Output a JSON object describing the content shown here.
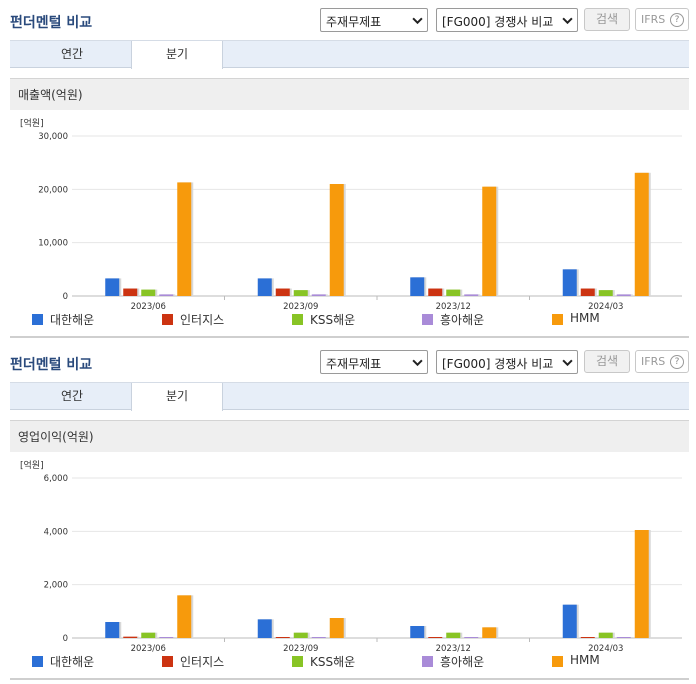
{
  "panels": [
    {
      "title": "펀더멘털 비교",
      "select_statement": "주재무제표",
      "select_compare": "[FG000] 경쟁사 비교",
      "search_label": "검색",
      "ifrs_label": "IFRS",
      "help_glyph": "?",
      "tabs": [
        {
          "label": "연간"
        },
        {
          "label": "분기"
        }
      ],
      "active_tab": 1,
      "card_title": "매출액(억원)"
    },
    {
      "title": "펀더멘털 비교",
      "select_statement": "주재무제표",
      "select_compare": "[FG000] 경쟁사 비교",
      "search_label": "검색",
      "ifrs_label": "IFRS",
      "help_glyph": "?",
      "tabs": [
        {
          "label": "연간"
        },
        {
          "label": "분기"
        }
      ],
      "active_tab": 1,
      "card_title": "영업이익(억원)"
    }
  ],
  "chart_data": [
    {
      "type": "bar",
      "title": "매출액(억원)",
      "unit_label": "[억원]",
      "categories": [
        "2023/06",
        "2023/09",
        "2023/12",
        "2024/03"
      ],
      "ylim": [
        0,
        30000
      ],
      "yticks": [
        0,
        10000,
        20000,
        30000
      ],
      "ytick_labels": [
        "0",
        "10,000",
        "20,000",
        "30,000"
      ],
      "grid": true,
      "legend_position": "bottom",
      "series": [
        {
          "name": "대한해운",
          "color": "#2b6fd6",
          "values": [
            3300,
            3300,
            3500,
            5000
          ]
        },
        {
          "name": "인터지스",
          "color": "#cc3311",
          "values": [
            1400,
            1400,
            1400,
            1400
          ]
        },
        {
          "name": "KSS해운",
          "color": "#88c425",
          "values": [
            1200,
            1100,
            1200,
            1100
          ]
        },
        {
          "name": "흥아해운",
          "color": "#a98bd8",
          "values": [
            300,
            300,
            300,
            300
          ]
        },
        {
          "name": "HMM",
          "color": "#f79a0c",
          "values": [
            21300,
            21000,
            20500,
            23100
          ]
        }
      ]
    },
    {
      "type": "bar",
      "title": "영업이익(억원)",
      "unit_label": "[억원]",
      "categories": [
        "2023/06",
        "2023/09",
        "2023/12",
        "2024/03"
      ],
      "ylim": [
        0,
        6000
      ],
      "yticks": [
        0,
        2000,
        4000,
        6000
      ],
      "ytick_labels": [
        "0",
        "2,000",
        "4,000",
        "6,000"
      ],
      "grid": true,
      "legend_position": "bottom",
      "series": [
        {
          "name": "대한해운",
          "color": "#2b6fd6",
          "values": [
            600,
            700,
            450,
            1250
          ]
        },
        {
          "name": "인터지스",
          "color": "#cc3311",
          "values": [
            50,
            20,
            10,
            30
          ]
        },
        {
          "name": "KSS해운",
          "color": "#88c425",
          "values": [
            200,
            200,
            200,
            200
          ]
        },
        {
          "name": "흥아해운",
          "color": "#a98bd8",
          "values": [
            30,
            30,
            20,
            30
          ]
        },
        {
          "name": "HMM",
          "color": "#f79a0c",
          "values": [
            1600,
            750,
            400,
            4050
          ]
        }
      ]
    }
  ]
}
